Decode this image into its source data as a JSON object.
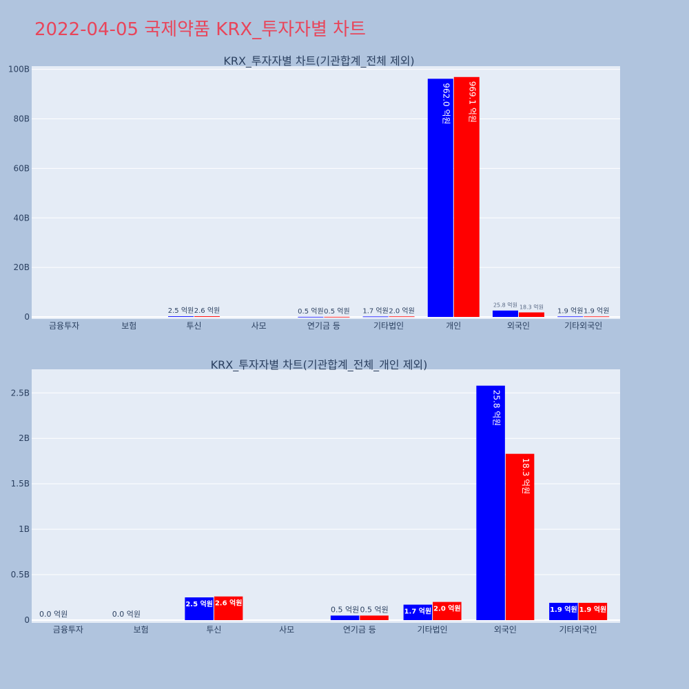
{
  "page": {
    "title": "2022-04-05 국제약품 KRX_투자자별 차트"
  },
  "colors": {
    "background": "#b0c4de",
    "plot_bg": "#e5ecf6",
    "title": "#e8455a",
    "buy": "#0000ff",
    "sell": "#ff0000",
    "text": "#2a3f5f"
  },
  "chart_data": [
    {
      "type": "bar",
      "title": "KRX_투자자별 차트(기관합계_전체 제외)",
      "categories": [
        "금융투자",
        "보험",
        "투신",
        "사모",
        "연기금 등",
        "기타법인",
        "개인",
        "외국인",
        "기타외국인"
      ],
      "series": [
        {
          "color": "#0000ff",
          "values": [
            0,
            0,
            250000000,
            0,
            50000000,
            170000000,
            96200000000,
            2580000000,
            190000000
          ],
          "labels": [
            "",
            "",
            "2.5 억원",
            "",
            "0.5 억원",
            "1.7 억원",
            "962.0 억원",
            "25.8 억원",
            "1.9 억원"
          ]
        },
        {
          "color": "#ff0000",
          "values": [
            0,
            0,
            260000000,
            0,
            50000000,
            200000000,
            96910000000,
            1830000000,
            190000000
          ],
          "labels": [
            "",
            "",
            "2.6 억원",
            "",
            "0.5 억원",
            "2.0 억원",
            "969.1 억원",
            "18.3 억원",
            "1.9 억원"
          ]
        }
      ],
      "yticks": [
        0,
        20000000000,
        40000000000,
        60000000000,
        80000000000,
        100000000000
      ],
      "ytick_labels": [
        "0",
        "20B",
        "40B",
        "60B",
        "80B",
        "100B"
      ],
      "ylim": [
        0,
        101300000000
      ],
      "grid": true
    },
    {
      "type": "bar",
      "title": "KRX_투자자별 차트(기관합계_전체_개인 제외)",
      "categories": [
        "금융투자",
        "보험",
        "투신",
        "사모",
        "연기금 등",
        "기타법인",
        "외국인",
        "기타외국인"
      ],
      "series": [
        {
          "color": "#0000ff",
          "values": [
            0,
            0,
            250000000,
            0,
            50000000,
            170000000,
            2580000000,
            190000000
          ],
          "labels": [
            "0.0 억원",
            "0.0 억원",
            "2.5 억원",
            "",
            "0.5 억원",
            "1.7 억원",
            "25.8 억원",
            "1.9 억원"
          ]
        },
        {
          "color": "#ff0000",
          "values": [
            0,
            0,
            260000000,
            0,
            50000000,
            200000000,
            1830000000,
            190000000
          ],
          "labels": [
            "",
            "",
            "2.6 억원",
            "",
            "0.5 억원",
            "2.0 억원",
            "18.3 억원",
            "1.9 억원"
          ]
        }
      ],
      "yticks": [
        0,
        500000000,
        1000000000,
        1500000000,
        2000000000,
        2500000000
      ],
      "ytick_labels": [
        "0",
        "0.5B",
        "1B",
        "1.5B",
        "2B",
        "2.5B"
      ],
      "ylim": [
        0,
        2760000000
      ],
      "grid": true
    }
  ]
}
